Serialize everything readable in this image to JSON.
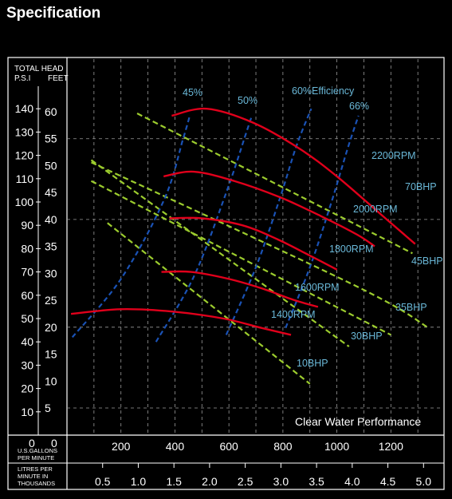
{
  "page": {
    "title": "Specification"
  },
  "chart_data": {
    "type": "line",
    "title": "Clear Water Performance",
    "colors": {
      "rpm": "#e0001b",
      "bhp": "#9ccc2e",
      "efficiency": "#1a52b5",
      "label": "#6ab8d8",
      "axis": "#ffffff",
      "grid": "#9a9a9a"
    },
    "y_axis": {
      "title_line1": "TOTAL HEAD",
      "psi_label": "P.S.I",
      "feet_label": "FEET",
      "ylim_psi": [
        0,
        150
      ],
      "psi_ticks": [
        "10",
        "20",
        "30",
        "40",
        "50",
        "60",
        "70",
        "80",
        "90",
        "100",
        "110",
        "120",
        "130",
        "140"
      ],
      "feet_ticks": [
        "5",
        "10",
        "15",
        "20",
        "25",
        "30",
        "35",
        "40",
        "45",
        "50",
        "55",
        "60"
      ],
      "zero_psi": "0",
      "zero_feet": "0"
    },
    "x_axis": {
      "xlim_usgpm": [
        0,
        1400
      ],
      "gallons_label": [
        "U.S.GALLONS",
        "PER MINUTE"
      ],
      "gallons_ticks": [
        "200",
        "400",
        "600",
        "800",
        "1000",
        "1200"
      ],
      "litres_label": [
        "LITRES PER",
        "MINUTE IN",
        "THOUSANDS"
      ],
      "litres_ticks": [
        "0.5",
        "1.0",
        "1.5",
        "2.0",
        "2.5",
        "3.0",
        "3.5",
        "4.0",
        "4.5",
        "5.0"
      ]
    },
    "rpm_curves": [
      {
        "label": "2200RPM",
        "points": [
          [
            388,
            137
          ],
          [
            518,
            140
          ],
          [
            690,
            134
          ],
          [
            860,
            123
          ],
          [
            1000,
            111
          ],
          [
            1160,
            95
          ],
          [
            1290,
            82
          ]
        ]
      },
      {
        "label": "2000RPM",
        "points": [
          [
            358,
            111
          ],
          [
            470,
            113
          ],
          [
            620,
            109
          ],
          [
            790,
            102
          ],
          [
            940,
            94
          ],
          [
            1075,
            86
          ],
          [
            1140,
            81
          ]
        ]
      },
      {
        "label": "1800RPM",
        "points": [
          [
            380,
            93
          ],
          [
            500,
            93
          ],
          [
            650,
            90
          ],
          [
            780,
            84
          ],
          [
            900,
            77
          ],
          [
            1000,
            71
          ]
        ]
      },
      {
        "label": "1600RPM",
        "points": [
          [
            350,
            70
          ],
          [
            460,
            70
          ],
          [
            600,
            67
          ],
          [
            720,
            63
          ],
          [
            840,
            58
          ],
          [
            930,
            55
          ]
        ]
      },
      {
        "label": "1400RPM",
        "points": [
          [
            15,
            52
          ],
          [
            200,
            54
          ],
          [
            390,
            53
          ],
          [
            580,
            50
          ],
          [
            720,
            46
          ],
          [
            830,
            43
          ]
        ]
      }
    ],
    "bhp_lines": [
      {
        "label": "70BHP",
        "points": [
          [
            260,
            138
          ],
          [
            1280,
            78
          ]
        ]
      },
      {
        "label": "45BHP",
        "points": [
          [
            90,
            117
          ],
          [
            1070,
            64
          ],
          [
            1340,
            46
          ]
        ]
      },
      {
        "label": "35BHP",
        "points": [
          [
            90,
            109
          ],
          [
            1200,
            43
          ]
        ]
      },
      {
        "label": "30BHP",
        "points": [
          [
            90,
            118
          ],
          [
            1045,
            38
          ]
        ]
      },
      {
        "label": "10BHP",
        "points": [
          [
            150,
            91
          ],
          [
            900,
            22
          ]
        ]
      }
    ],
    "efficiency_curves": [
      {
        "label": "45%",
        "points": [
          [
            20,
            42
          ],
          [
            200,
            67
          ],
          [
            360,
            101
          ],
          [
            430,
            127
          ],
          [
            455,
            137
          ]
        ]
      },
      {
        "label": "50%",
        "points": [
          [
            330,
            40
          ],
          [
            470,
            68
          ],
          [
            590,
            104
          ],
          [
            665,
            130
          ],
          [
            685,
            137
          ]
        ]
      },
      {
        "label": "60%Efficiency",
        "points": [
          [
            590,
            43
          ],
          [
            700,
            72
          ],
          [
            790,
            102
          ],
          [
            850,
            124
          ],
          [
            905,
            140
          ]
        ]
      },
      {
        "label": "66%",
        "points": [
          [
            810,
            46
          ],
          [
            900,
            72
          ],
          [
            980,
            100
          ],
          [
            1040,
            123
          ],
          [
            1080,
            137
          ]
        ]
      }
    ]
  }
}
